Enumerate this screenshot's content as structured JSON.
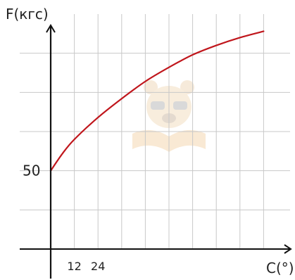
{
  "chart_data": {
    "type": "line",
    "title": "",
    "ylabel": "F(кгс)",
    "xlabel": "C(°)",
    "y_tick_labels": [
      {
        "value": 50,
        "label": "50"
      }
    ],
    "x_tick_labels": [
      {
        "value": 12,
        "label": "12"
      },
      {
        "value": 24,
        "label": "24"
      }
    ],
    "xlim": [
      0,
      120
    ],
    "ylim": [
      0,
      150
    ],
    "grid": true,
    "grid_x_step": 12,
    "grid_y_step": 25,
    "series": [
      {
        "color": "#c0161c",
        "x": [
          0,
          6,
          12,
          24,
          36,
          48,
          60,
          72,
          84,
          96,
          108
        ],
        "y": [
          50,
          61,
          70,
          84,
          96,
          107,
          116,
          124,
          130,
          135,
          139
        ]
      }
    ]
  },
  "colors": {
    "axis": "#111111",
    "grid": "#c8c8c8",
    "curve": "#c0161c"
  },
  "watermark_icon": "bear-mascot-with-book-icon"
}
